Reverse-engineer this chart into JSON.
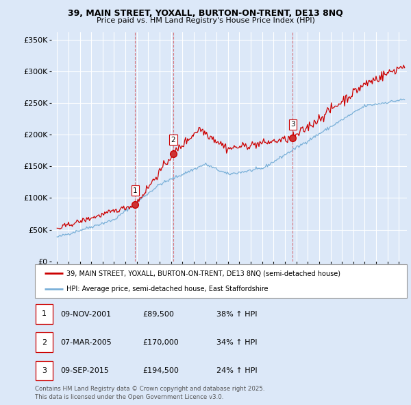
{
  "title_line1": "39, MAIN STREET, YOXALL, BURTON-ON-TRENT, DE13 8NQ",
  "title_line2": "Price paid vs. HM Land Registry's House Price Index (HPI)",
  "ylabel_ticks": [
    "£0",
    "£50K",
    "£100K",
    "£150K",
    "£200K",
    "£250K",
    "£300K",
    "£350K"
  ],
  "ytick_vals": [
    0,
    50000,
    100000,
    150000,
    200000,
    250000,
    300000,
    350000
  ],
  "ylim": [
    0,
    362000
  ],
  "xlim_start": 1994.5,
  "xlim_end": 2025.7,
  "background_color": "#dce8f8",
  "plot_bg_color": "#dce8f8",
  "grid_color": "#ffffff",
  "red_line_color": "#cc0000",
  "blue_line_color": "#7ab0d8",
  "sale_markers": [
    {
      "year": 2001.86,
      "price": 89500,
      "label": "1"
    },
    {
      "year": 2005.18,
      "price": 170000,
      "label": "2"
    },
    {
      "year": 2015.69,
      "price": 194500,
      "label": "3"
    }
  ],
  "vline_color": "#cc0000",
  "legend_label_red": "39, MAIN STREET, YOXALL, BURTON-ON-TRENT, DE13 8NQ (semi-detached house)",
  "legend_label_blue": "HPI: Average price, semi-detached house, East Staffordshire",
  "table_rows": [
    {
      "num": "1",
      "date": "09-NOV-2001",
      "price": "£89,500",
      "change": "38% ↑ HPI"
    },
    {
      "num": "2",
      "date": "07-MAR-2005",
      "price": "£170,000",
      "change": "34% ↑ HPI"
    },
    {
      "num": "3",
      "date": "09-SEP-2015",
      "price": "£194,500",
      "change": "24% ↑ HPI"
    }
  ],
  "footer_text": "Contains HM Land Registry data © Crown copyright and database right 2025.\nThis data is licensed under the Open Government Licence v3.0."
}
